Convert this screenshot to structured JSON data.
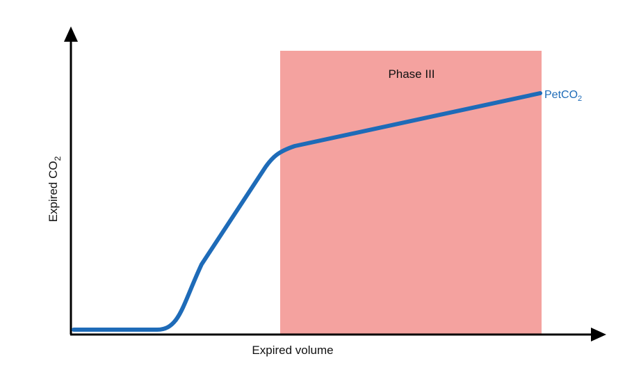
{
  "x_axis_label": "Expired volume",
  "y_axis_label": {
    "text": "Expired CO",
    "subscript": "2"
  },
  "region_label": "Phase III",
  "curve_label": {
    "text": "PetCO",
    "subscript": "2"
  },
  "colors": {
    "region_fill": "#f4a29f",
    "curve": "#1e6bb8",
    "axes": "#000000",
    "text": "#111111"
  }
}
